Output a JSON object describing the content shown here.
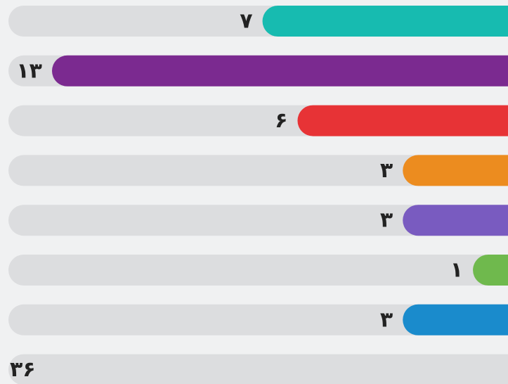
{
  "chart_data": {
    "type": "bar",
    "values": [
      7,
      13,
      6,
      3,
      3,
      1,
      3
    ],
    "value_labels": [
      "۷",
      "۱۳",
      "۶",
      "۳",
      "۳",
      "۱",
      "۳"
    ],
    "colors": [
      "#17bbb0",
      "#7b2a90",
      "#e73336",
      "#ec8c1f",
      "#795bc0",
      "#6fb94d",
      "#1a8bcc"
    ],
    "total": 36,
    "total_label": "۳۶"
  }
}
